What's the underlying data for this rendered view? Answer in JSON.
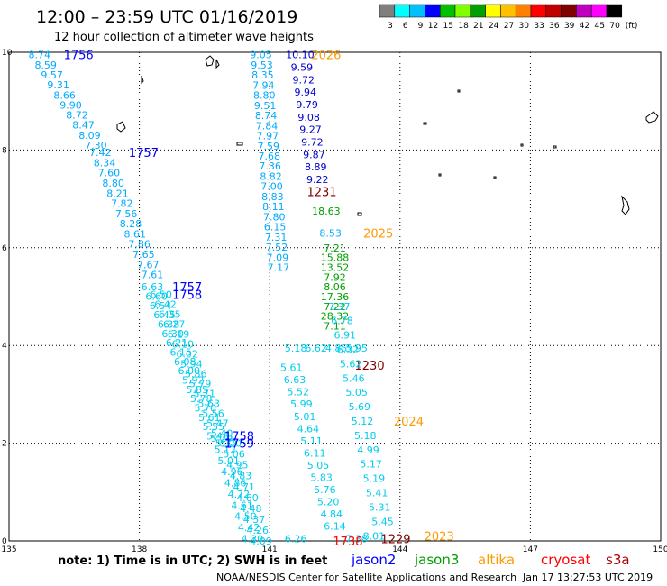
{
  "title": "12:00 – 23:59 UTC 01/16/2019",
  "subtitle": "12 hour collection of altimeter wave heights",
  "legend": {
    "unit": "(ft)",
    "labels": [
      "3",
      "6",
      "9",
      "12",
      "15",
      "18",
      "21",
      "24",
      "27",
      "30",
      "33",
      "36",
      "39",
      "42",
      "45",
      "70"
    ],
    "colors": [
      "#7f7f7f",
      "#00ffff",
      "#00c0ff",
      "#0000ff",
      "#00c000",
      "#80ff00",
      "#00a000",
      "#ffff00",
      "#ffc000",
      "#ff8000",
      "#ff0000",
      "#c00000",
      "#800000",
      "#c000c0",
      "#ff00ff",
      "#000000"
    ]
  },
  "axes": {
    "lon_min": 135,
    "lon_max": 150,
    "lat_min": 0,
    "lat_max": 10,
    "x_ticks": [
      "135",
      "138",
      "141",
      "144",
      "147",
      "150"
    ],
    "y_ticks": [
      "0",
      "2",
      "4",
      "6",
      "8",
      "10"
    ]
  },
  "satellites": [
    {
      "name": "jason2",
      "color": "#0000ff"
    },
    {
      "name": "jason3",
      "color": "#00a000"
    },
    {
      "name": "altika",
      "color": "#ff9900"
    },
    {
      "name": "cryosat",
      "color": "#ff0000"
    },
    {
      "name": "s3a",
      "color": "#aa0000"
    }
  ],
  "footer": {
    "note": "note:  1) Time is in UTC;  2) SWH is in feet",
    "credit": "NOAA/NESDIS Center for Satellite Applications and Research",
    "timestamp": "Jan 17 13:27:53 UTC 2019"
  },
  "passes": [
    {
      "time_label": "1756",
      "label_color": "#0000ff",
      "time_lon": 136.6,
      "time_lat": 9.95,
      "lon_start": 135.7,
      "lat_start": 9.95,
      "lon_end": 137.0,
      "lat_end": 8.1,
      "color": "#00aaff",
      "values": [
        "8.74",
        "8.59",
        "9.57",
        "9.31",
        "8.66",
        "9.90",
        "8.72",
        "8.47",
        "8.09",
        "7.30"
      ]
    },
    {
      "time_label": "1757",
      "label_color": "#0000ff",
      "time_lon": 138.1,
      "time_lat": 7.95,
      "lon_start": 137.1,
      "lat_start": 7.95,
      "lon_end": 138.3,
      "lat_end": 5.45,
      "color": "#00aaff",
      "values": [
        "7.42",
        "8.34",
        "7.60",
        "8.80",
        "8.21",
        "7.82",
        "7.56",
        "8.28",
        "8.61",
        "7.86",
        "7.65",
        "7.67",
        "7.61"
      ]
    },
    {
      "time_label": "1757",
      "label_color": "#0000ff",
      "time_lon": 139.1,
      "time_lat": 5.2,
      "lon_start": 138.3,
      "lat_start": 5.2,
      "lon_end": 139.8,
      "lat_end": 2.15,
      "color": "#00ccee",
      "values": [
        "6.63",
        "6.60",
        "6.54",
        "6.45",
        "6.38",
        "6.30",
        "6.21",
        "6.15",
        "6.08",
        "6.00",
        "5.92",
        "5.85",
        "5.78",
        "5.70",
        "5.61",
        "5.55",
        "5.48"
      ]
    },
    {
      "time_label": "1758",
      "label_color": "#0000ff",
      "time_lon": 139.1,
      "time_lat": 5.05,
      "lon_start": 138.5,
      "lat_start": 5.05,
      "lon_end": 140.0,
      "lat_end": 2.0,
      "color": "#00ccee",
      "values": [
        "6.50",
        "6.42",
        "6.35",
        "6.27",
        "6.19",
        "6.10",
        "6.02",
        "5.94",
        "5.86",
        "5.79",
        "5.71",
        "5.63",
        "5.56",
        "5.47",
        "5.40",
        "5.32"
      ]
    },
    {
      "time_label": "1758",
      "label_color": "#0000ff",
      "time_lon": 140.3,
      "time_lat": 2.15,
      "lon_start": 139.9,
      "lat_start": 2.1,
      "lon_end": 140.6,
      "lat_end": 0.05,
      "color": "#00ccee",
      "values": [
        "5.29",
        "5.12",
        "5.01",
        "4.96",
        "4.86",
        "4.72",
        "4.61",
        "4.50",
        "4.42",
        "4.30"
      ]
    },
    {
      "time_label": "1759",
      "label_color": "#0000ff",
      "time_lon": 140.3,
      "time_lat": 2.0,
      "lon_start": 140.1,
      "lat_start": 2.0,
      "lon_end": 140.8,
      "lat_end": 0.0,
      "color": "#00ccee",
      "values": [
        "5.20",
        "5.06",
        "4.95",
        "4.83",
        "4.71",
        "4.60",
        "4.48",
        "4.37",
        "4.26",
        "4.09"
      ]
    },
    {
      "time_label": "2026",
      "label_color": "#ff9900",
      "time_lon": 142.3,
      "time_lat": 9.95,
      "lon_start": 140.8,
      "lat_start": 9.95,
      "lon_end": 141.2,
      "lat_end": 5.6,
      "color": "#00aaff",
      "values": [
        "9.05",
        "9.53",
        "8.35",
        "7.94",
        "8.80",
        "9.51",
        "8.74",
        "7.84",
        "7.97",
        "7.59",
        "7.68",
        "7.36",
        "8.82",
        "7.00",
        "8.83",
        "8.11",
        "7.80",
        "6.15",
        "7.31",
        "7.52",
        "7.09",
        "7.17"
      ]
    },
    {
      "time_label": "",
      "label_color": "#0000ff",
      "time_lon": 0,
      "time_lat": 0,
      "lon_start": 141.7,
      "lat_start": 9.95,
      "lon_end": 142.1,
      "lat_end": 7.4,
      "color": "#0000cc",
      "values": [
        "10.10",
        "9.59",
        "9.72",
        "9.94",
        "9.79",
        "9.08",
        "9.27",
        "9.72",
        "9.87",
        "8.89",
        "9.22"
      ]
    },
    {
      "time_label": "1231",
      "label_color": "#800000",
      "time_lon": 142.2,
      "time_lat": 7.15,
      "lon_start": 142.3,
      "lat_start": 6.75,
      "lon_end": 142.5,
      "lat_end": 6.75,
      "color": "#00a000",
      "values": [
        "18.63"
      ]
    },
    {
      "time_label": "2025",
      "label_color": "#ff9900",
      "time_lon": 143.5,
      "time_lat": 6.3,
      "lon_start": 142.4,
      "lat_start": 6.3,
      "lon_end": 142.4,
      "lat_end": 6.3,
      "color": "#00aaff",
      "values": [
        "8.53"
      ]
    },
    {
      "time_label": "",
      "label_color": "#00a000",
      "time_lon": 0,
      "time_lat": 0,
      "lon_start": 142.5,
      "lat_start": 6.0,
      "lon_end": 142.5,
      "lat_end": 4.4,
      "color": "#00a000",
      "values": [
        "7.21",
        "15.88",
        "13.52",
        "7.92",
        "8.06",
        "17.36",
        "7.22",
        "28.32",
        "7.11"
      ]
    },
    {
      "time_label": "1230",
      "label_color": "#800000",
      "time_lon": 143.3,
      "time_lat": 3.6,
      "lon_start": 141.6,
      "lat_start": 3.95,
      "lon_end": 143.0,
      "lat_end": 3.95,
      "color": "#00ccee",
      "values": [
        "5.18",
        "6.62",
        "4.85",
        "5.95"
      ]
    },
    {
      "time_label": "2024",
      "label_color": "#ff9900",
      "time_lon": 144.2,
      "time_lat": 2.45,
      "lon_start": 142.6,
      "lat_start": 4.8,
      "lon_end": 143.6,
      "lat_end": 0.4,
      "color": "#00ccee",
      "values": [
        "7.37",
        "6.78",
        "6.91",
        "6.32",
        "5.62",
        "5.46",
        "5.05",
        "5.69",
        "5.12",
        "5.18",
        "4.99",
        "5.17",
        "5.19",
        "5.41",
        "5.31",
        "5.45"
      ]
    },
    {
      "time_label": "",
      "label_color": "#00ccee",
      "time_lon": 0,
      "time_lat": 0,
      "lon_start": 141.5,
      "lat_start": 3.55,
      "lon_end": 142.5,
      "lat_end": 0.3,
      "color": "#00ccee",
      "values": [
        "5.61",
        "6.63",
        "5.52",
        "5.99",
        "5.01",
        "4.64",
        "5.11",
        "6.11",
        "5.05",
        "5.83",
        "5.76",
        "5.20",
        "4.84",
        "6.14"
      ]
    },
    {
      "time_label": "1229",
      "label_color": "#800000",
      "time_lon": 143.9,
      "time_lat": 0.05,
      "lon_start": 141.6,
      "lat_start": 0.05,
      "lon_end": 141.6,
      "lat_end": 0.05,
      "color": "#00ccee",
      "values": [
        "6.26"
      ]
    },
    {
      "time_label": "1738",
      "label_color": "#ff0000",
      "time_lon": 142.8,
      "time_lat": 0.0,
      "lon_start": 143.0,
      "lat_start": 0.05,
      "lon_end": 143.0,
      "lat_end": 0.05,
      "color": "#00ccee",
      "values": [
        "7.38"
      ]
    },
    {
      "time_label": "2023",
      "label_color": "#ff9900",
      "time_lon": 144.9,
      "time_lat": 0.1,
      "lon_start": 143.4,
      "lat_start": 0.1,
      "lon_end": 143.4,
      "lat_end": 0.1,
      "color": "#00ccee",
      "values": [
        "8.01"
      ]
    }
  ]
}
